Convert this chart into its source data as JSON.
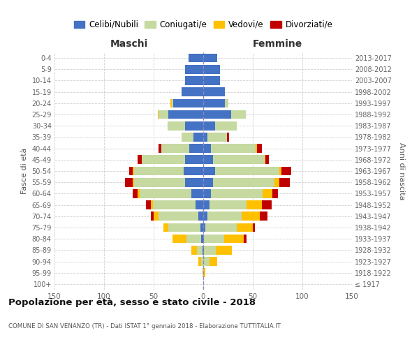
{
  "age_groups": [
    "100+",
    "95-99",
    "90-94",
    "85-89",
    "80-84",
    "75-79",
    "70-74",
    "65-69",
    "60-64",
    "55-59",
    "50-54",
    "45-49",
    "40-44",
    "35-39",
    "30-34",
    "25-29",
    "20-24",
    "15-19",
    "10-14",
    "5-9",
    "0-4"
  ],
  "birth_years": [
    "≤ 1917",
    "1918-1922",
    "1923-1927",
    "1928-1932",
    "1933-1937",
    "1938-1942",
    "1943-1947",
    "1948-1952",
    "1953-1957",
    "1958-1962",
    "1963-1967",
    "1968-1972",
    "1973-1977",
    "1978-1982",
    "1983-1987",
    "1988-1992",
    "1993-1997",
    "1998-2002",
    "2003-2007",
    "2008-2012",
    "2013-2017"
  ],
  "maschi": {
    "celibi": [
      0,
      0,
      0,
      1,
      2,
      3,
      5,
      8,
      12,
      18,
      20,
      18,
      14,
      10,
      18,
      35,
      30,
      22,
      18,
      18,
      15
    ],
    "coniugati": [
      0,
      0,
      2,
      5,
      15,
      32,
      40,
      43,
      52,
      52,
      50,
      44,
      28,
      12,
      18,
      10,
      2,
      0,
      0,
      0,
      0
    ],
    "vedovi": [
      0,
      1,
      3,
      6,
      14,
      5,
      5,
      2,
      2,
      1,
      1,
      0,
      0,
      0,
      0,
      1,
      1,
      0,
      0,
      0,
      0
    ],
    "divorziati": [
      0,
      0,
      0,
      0,
      0,
      0,
      3,
      5,
      5,
      8,
      4,
      4,
      3,
      0,
      0,
      0,
      0,
      0,
      0,
      0,
      0
    ]
  },
  "femmine": {
    "nubili": [
      0,
      0,
      0,
      1,
      1,
      2,
      4,
      6,
      8,
      10,
      12,
      10,
      8,
      4,
      12,
      28,
      22,
      22,
      17,
      17,
      14
    ],
    "coniugate": [
      0,
      1,
      6,
      12,
      20,
      32,
      35,
      38,
      52,
      62,
      65,
      52,
      45,
      20,
      22,
      15,
      3,
      0,
      0,
      0,
      0
    ],
    "vedove": [
      0,
      1,
      8,
      16,
      20,
      16,
      18,
      15,
      10,
      5,
      2,
      1,
      1,
      0,
      0,
      0,
      0,
      0,
      0,
      0,
      0
    ],
    "divorziate": [
      0,
      0,
      0,
      0,
      3,
      2,
      8,
      10,
      5,
      10,
      10,
      3,
      5,
      2,
      0,
      0,
      0,
      0,
      0,
      0,
      0
    ]
  },
  "colors": {
    "celibi": "#4472c4",
    "coniugati": "#c5d9a0",
    "vedovi": "#ffc000",
    "divorziati": "#c00000"
  },
  "title": "Popolazione per età, sesso e stato civile - 2018",
  "subtitle": "COMUNE DI SAN VENANZO (TR) - Dati ISTAT 1° gennaio 2018 - Elaborazione TUTTITALIA.IT",
  "xlabel_left": "Maschi",
  "xlabel_right": "Femmine",
  "ylabel_left": "Fasce di età",
  "ylabel_right": "Anni di nascita",
  "xlim": 150,
  "legend_labels": [
    "Celibi/Nubili",
    "Coniugati/e",
    "Vedovi/e",
    "Divorziati/e"
  ],
  "background_color": "#ffffff",
  "grid_color": "#cccccc"
}
